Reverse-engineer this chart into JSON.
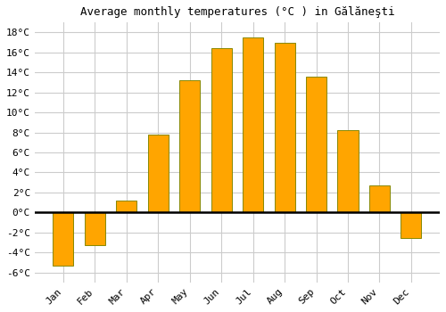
{
  "title": "Average monthly temperatures (°C ) in Gălăneşti",
  "months": [
    "Jan",
    "Feb",
    "Mar",
    "Apr",
    "May",
    "Jun",
    "Jul",
    "Aug",
    "Sep",
    "Oct",
    "Nov",
    "Dec"
  ],
  "values": [
    -5.3,
    -3.3,
    1.2,
    7.8,
    13.2,
    16.4,
    17.5,
    17.0,
    13.6,
    8.2,
    2.7,
    -2.6
  ],
  "bar_color": "#FFA500",
  "bar_edge_color": "#888800",
  "background_color": "#ffffff",
  "plot_bg_color": "#ffffff",
  "grid_color": "#cccccc",
  "zero_line_color": "#000000",
  "ylim": [
    -7,
    19
  ],
  "yticks": [
    -6,
    -4,
    -2,
    0,
    2,
    4,
    6,
    8,
    10,
    12,
    14,
    16,
    18
  ],
  "title_fontsize": 9,
  "tick_fontsize": 8,
  "ylabel_suffix": "°C"
}
